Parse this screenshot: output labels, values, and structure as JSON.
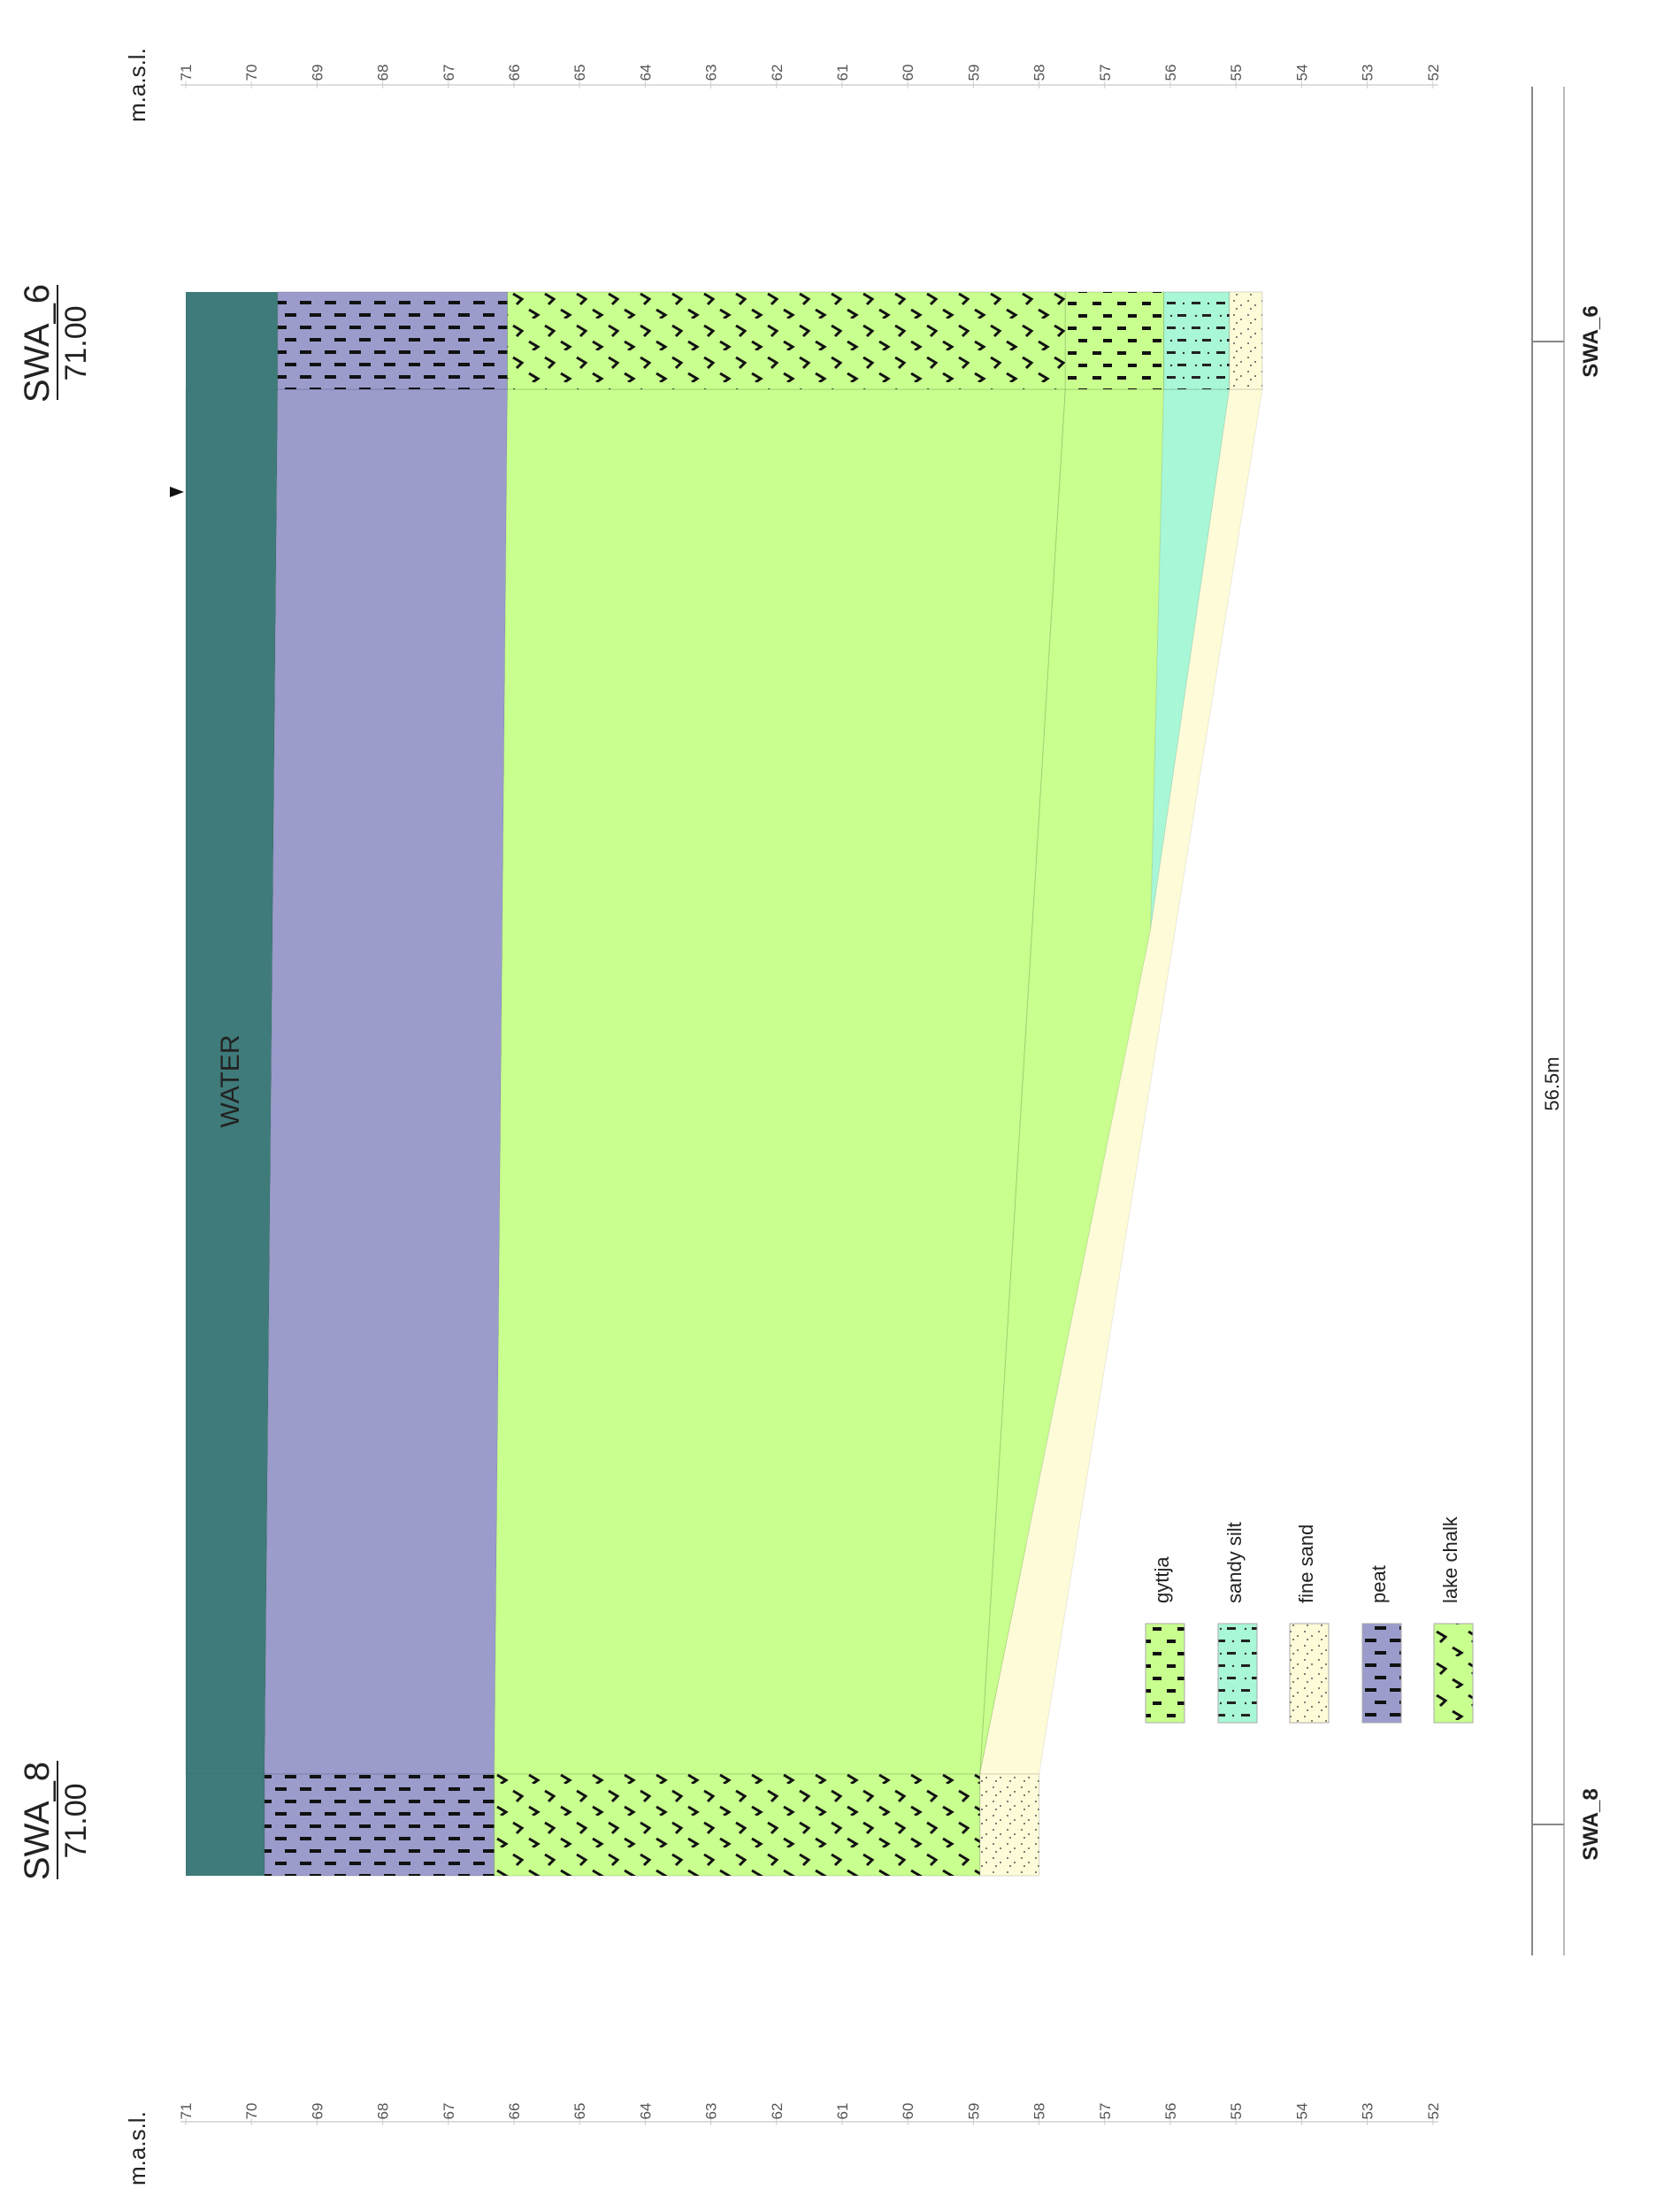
{
  "axis": {
    "unit_label": "m.a.s.l.",
    "ticks": [
      "71",
      "70",
      "69",
      "68",
      "67",
      "66",
      "65",
      "64",
      "63",
      "62",
      "61",
      "60",
      "59",
      "58",
      "57",
      "56",
      "55",
      "54",
      "53",
      "52"
    ]
  },
  "wells": {
    "top": {
      "name": "SWA_6",
      "elevation": "71.00",
      "label": "SWA_6"
    },
    "bottom": {
      "name": "SWA_8",
      "elevation": "71.00",
      "label": "SWA_8"
    }
  },
  "section": {
    "distance_label": "56.5m",
    "water_label": "WATER"
  },
  "legend": [
    {
      "key": "gyttja",
      "label": "gyttja",
      "color": "#c8ff8e"
    },
    {
      "key": "sandy_silt",
      "label": "sandy silt",
      "color": "#a8f7d6"
    },
    {
      "key": "fine_sand",
      "label": "fine sand",
      "color": "#fefcd8"
    },
    {
      "key": "peat",
      "label": "peat",
      "color": "#9b9ccc"
    },
    {
      "key": "lake_chalk",
      "label": "lake chalk",
      "color": "#c8ff8e"
    }
  ],
  "colors": {
    "water": "#3f7b7a",
    "peat": "#9b9ccc",
    "lake_chalk": "#c8ff8e",
    "gyttja": "#c8ff8e",
    "sandy_silt": "#a8f7d6",
    "fine_sand": "#fefcd8"
  },
  "strata": {
    "top_well": [
      {
        "unit": "water",
        "from": 71.0,
        "to": 69.6
      },
      {
        "unit": "peat",
        "from": 69.6,
        "to": 66.1
      },
      {
        "unit": "lake_chalk",
        "from": 66.1,
        "to": 57.6
      },
      {
        "unit": "gyttja",
        "from": 57.6,
        "to": 56.1
      },
      {
        "unit": "sandy_silt",
        "from": 56.1,
        "to": 55.1
      },
      {
        "unit": "fine_sand",
        "from": 55.1,
        "to": 54.6
      }
    ],
    "bottom_well": [
      {
        "unit": "water",
        "from": 71.0,
        "to": 69.8
      },
      {
        "unit": "peat",
        "from": 69.8,
        "to": 66.3
      },
      {
        "unit": "lake_chalk",
        "from": 66.3,
        "to": 58.9
      },
      {
        "unit": "fine_sand",
        "from": 58.9,
        "to": 58.0
      }
    ]
  }
}
